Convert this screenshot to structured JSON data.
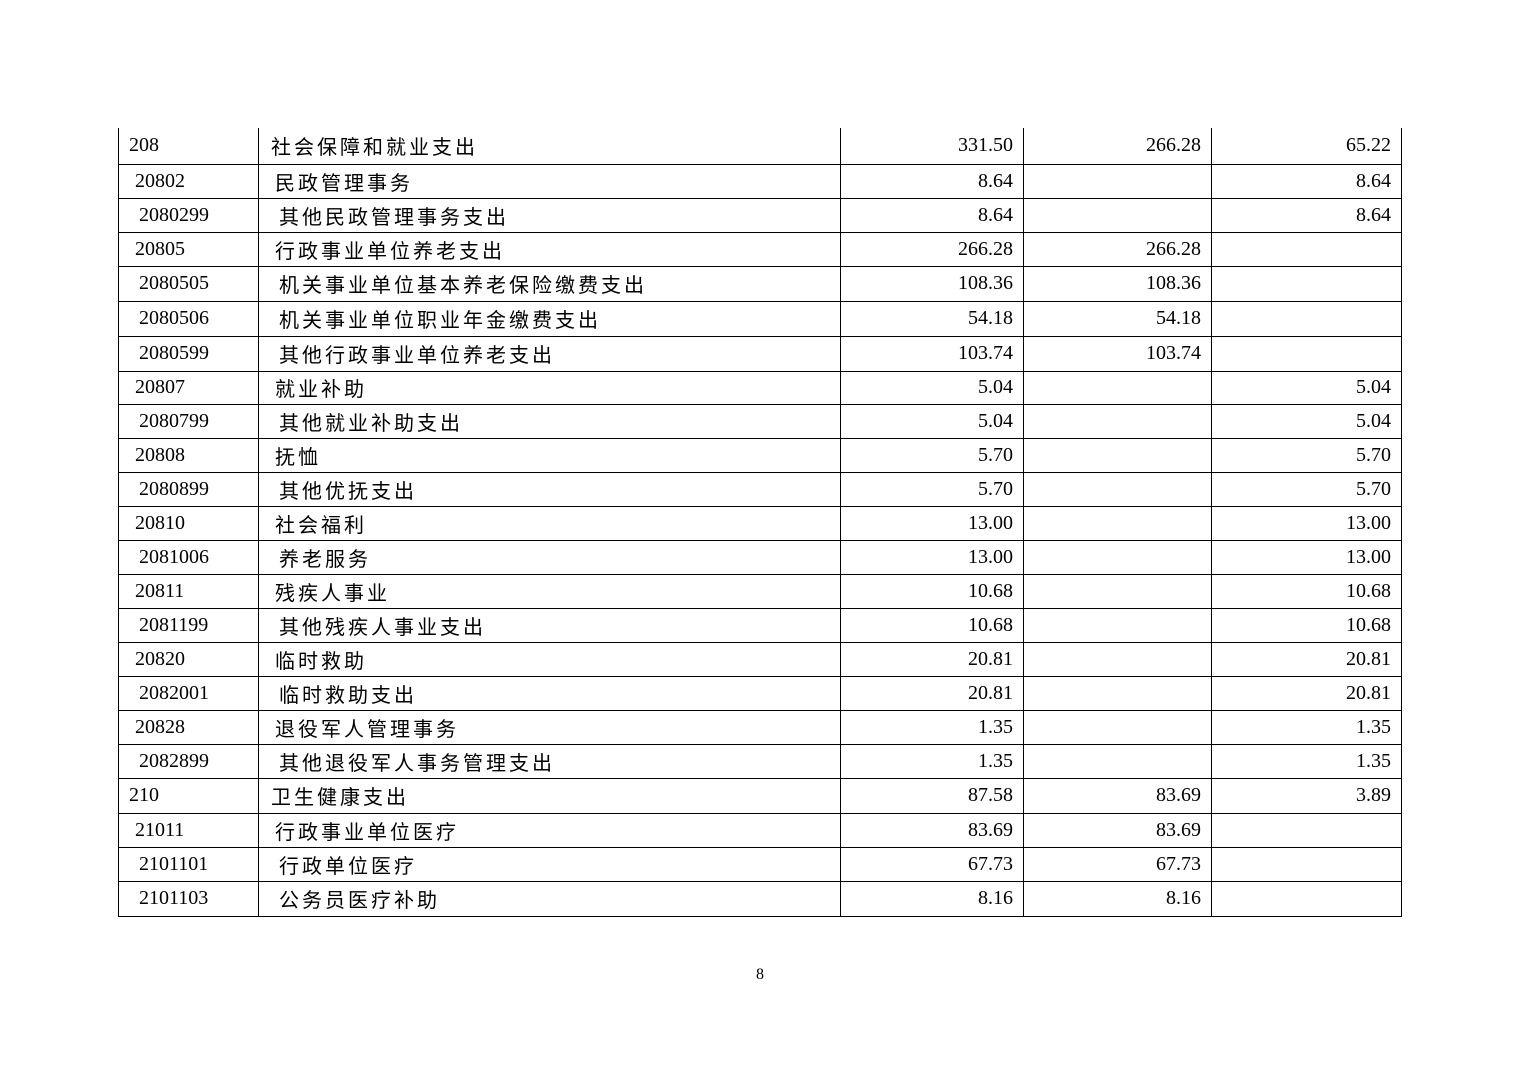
{
  "table": {
    "rows": [
      {
        "code": "208",
        "name": "社会保障和就业支出",
        "total": "331.50",
        "basic": "266.28",
        "project": "65.22",
        "level": 0
      },
      {
        "code": "20802",
        "name": "民政管理事务",
        "total": "8.64",
        "basic": "",
        "project": "8.64",
        "level": 1
      },
      {
        "code": "2080299",
        "name": "其他民政管理事务支出",
        "total": "8.64",
        "basic": "",
        "project": "8.64",
        "level": 2
      },
      {
        "code": "20805",
        "name": "行政事业单位养老支出",
        "total": "266.28",
        "basic": "266.28",
        "project": "",
        "level": 1
      },
      {
        "code": "2080505",
        "name": "机关事业单位基本养老保险缴费支出",
        "total": "108.36",
        "basic": "108.36",
        "project": "",
        "level": 2
      },
      {
        "code": "2080506",
        "name": "机关事业单位职业年金缴费支出",
        "total": "54.18",
        "basic": "54.18",
        "project": "",
        "level": 2
      },
      {
        "code": "2080599",
        "name": "其他行政事业单位养老支出",
        "total": "103.74",
        "basic": "103.74",
        "project": "",
        "level": 2
      },
      {
        "code": "20807",
        "name": "就业补助",
        "total": "5.04",
        "basic": "",
        "project": "5.04",
        "level": 1
      },
      {
        "code": "2080799",
        "name": "其他就业补助支出",
        "total": "5.04",
        "basic": "",
        "project": "5.04",
        "level": 2
      },
      {
        "code": "20808",
        "name": "抚恤",
        "total": "5.70",
        "basic": "",
        "project": "5.70",
        "level": 1
      },
      {
        "code": "2080899",
        "name": "其他优抚支出",
        "total": "5.70",
        "basic": "",
        "project": "5.70",
        "level": 2
      },
      {
        "code": "20810",
        "name": "社会福利",
        "total": "13.00",
        "basic": "",
        "project": "13.00",
        "level": 1
      },
      {
        "code": "2081006",
        "name": "养老服务",
        "total": "13.00",
        "basic": "",
        "project": "13.00",
        "level": 2
      },
      {
        "code": "20811",
        "name": "残疾人事业",
        "total": "10.68",
        "basic": "",
        "project": "10.68",
        "level": 1
      },
      {
        "code": "2081199",
        "name": "其他残疾人事业支出",
        "total": "10.68",
        "basic": "",
        "project": "10.68",
        "level": 2
      },
      {
        "code": "20820",
        "name": "临时救助",
        "total": "20.81",
        "basic": "",
        "project": "20.81",
        "level": 1
      },
      {
        "code": "2082001",
        "name": "临时救助支出",
        "total": "20.81",
        "basic": "",
        "project": "20.81",
        "level": 2
      },
      {
        "code": "20828",
        "name": "退役军人管理事务",
        "total": "1.35",
        "basic": "",
        "project": "1.35",
        "level": 1
      },
      {
        "code": "2082899",
        "name": "其他退役军人事务管理支出",
        "total": "1.35",
        "basic": "",
        "project": "1.35",
        "level": 2
      },
      {
        "code": "210",
        "name": "卫生健康支出",
        "total": "87.58",
        "basic": "83.69",
        "project": "3.89",
        "level": 0
      },
      {
        "code": "21011",
        "name": "行政事业单位医疗",
        "total": "83.69",
        "basic": "83.69",
        "project": "",
        "level": 1
      },
      {
        "code": "2101101",
        "name": "行政单位医疗",
        "total": "67.73",
        "basic": "67.73",
        "project": "",
        "level": 2
      },
      {
        "code": "2101103",
        "name": "公务员医疗补助",
        "total": "8.16",
        "basic": "8.16",
        "project": "",
        "level": 2
      }
    ]
  },
  "page_number": "8"
}
